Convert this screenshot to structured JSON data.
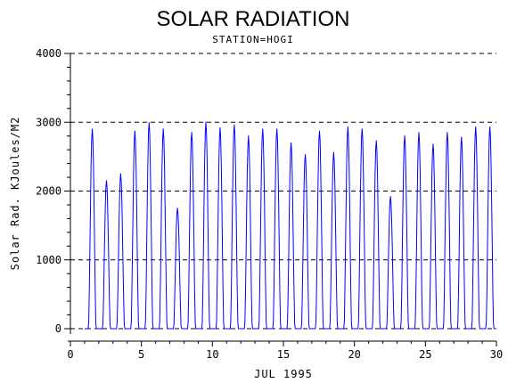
{
  "chart_data": {
    "type": "line",
    "title": "SOLAR RADIATION",
    "subtitle": "STATION=HOGI",
    "xlabel": "JUL 1995",
    "ylabel": "Solar Rad. KJoules/M2",
    "xlim": [
      0,
      30
    ],
    "ylim": [
      0,
      4000
    ],
    "x_ticks": [
      0,
      5,
      10,
      15,
      20,
      25,
      30
    ],
    "x_tick_labels": [
      "0",
      "5",
      "10",
      "15",
      "20",
      "25",
      "30"
    ],
    "y_ticks": [
      0,
      1000,
      2000,
      3000,
      4000
    ],
    "y_tick_labels": [
      "0",
      "1000",
      "2000",
      "3000",
      "4000"
    ],
    "grid": "horizontal dashed",
    "series_color": "#0000ff",
    "series": [
      {
        "name": "",
        "daily_peaks": [
          {
            "day": 1,
            "peak": 2900
          },
          {
            "day": 2,
            "peak": 2150
          },
          {
            "day": 3,
            "peak": 2250
          },
          {
            "day": 4,
            "peak": 2870
          },
          {
            "day": 5,
            "peak": 2990
          },
          {
            "day": 6,
            "peak": 2900
          },
          {
            "day": 7,
            "peak": 1750
          },
          {
            "day": 8,
            "peak": 2850
          },
          {
            "day": 9,
            "peak": 3000
          },
          {
            "day": 10,
            "peak": 2920
          },
          {
            "day": 11,
            "peak": 2960
          },
          {
            "day": 12,
            "peak": 2800
          },
          {
            "day": 13,
            "peak": 2900
          },
          {
            "day": 14,
            "peak": 2900
          },
          {
            "day": 15,
            "peak": 2700
          },
          {
            "day": 16,
            "peak": 2530
          },
          {
            "day": 17,
            "peak": 2870
          },
          {
            "day": 18,
            "peak": 2560
          },
          {
            "day": 19,
            "peak": 2930
          },
          {
            "day": 20,
            "peak": 2900
          },
          {
            "day": 21,
            "peak": 2730
          },
          {
            "day": 22,
            "peak": 1920
          },
          {
            "day": 23,
            "peak": 2800
          },
          {
            "day": 24,
            "peak": 2850
          },
          {
            "day": 25,
            "peak": 2680
          },
          {
            "day": 26,
            "peak": 2850
          },
          {
            "day": 27,
            "peak": 2780
          },
          {
            "day": 28,
            "peak": 2930
          },
          {
            "day": 29,
            "peak": 2930
          }
        ]
      }
    ]
  }
}
